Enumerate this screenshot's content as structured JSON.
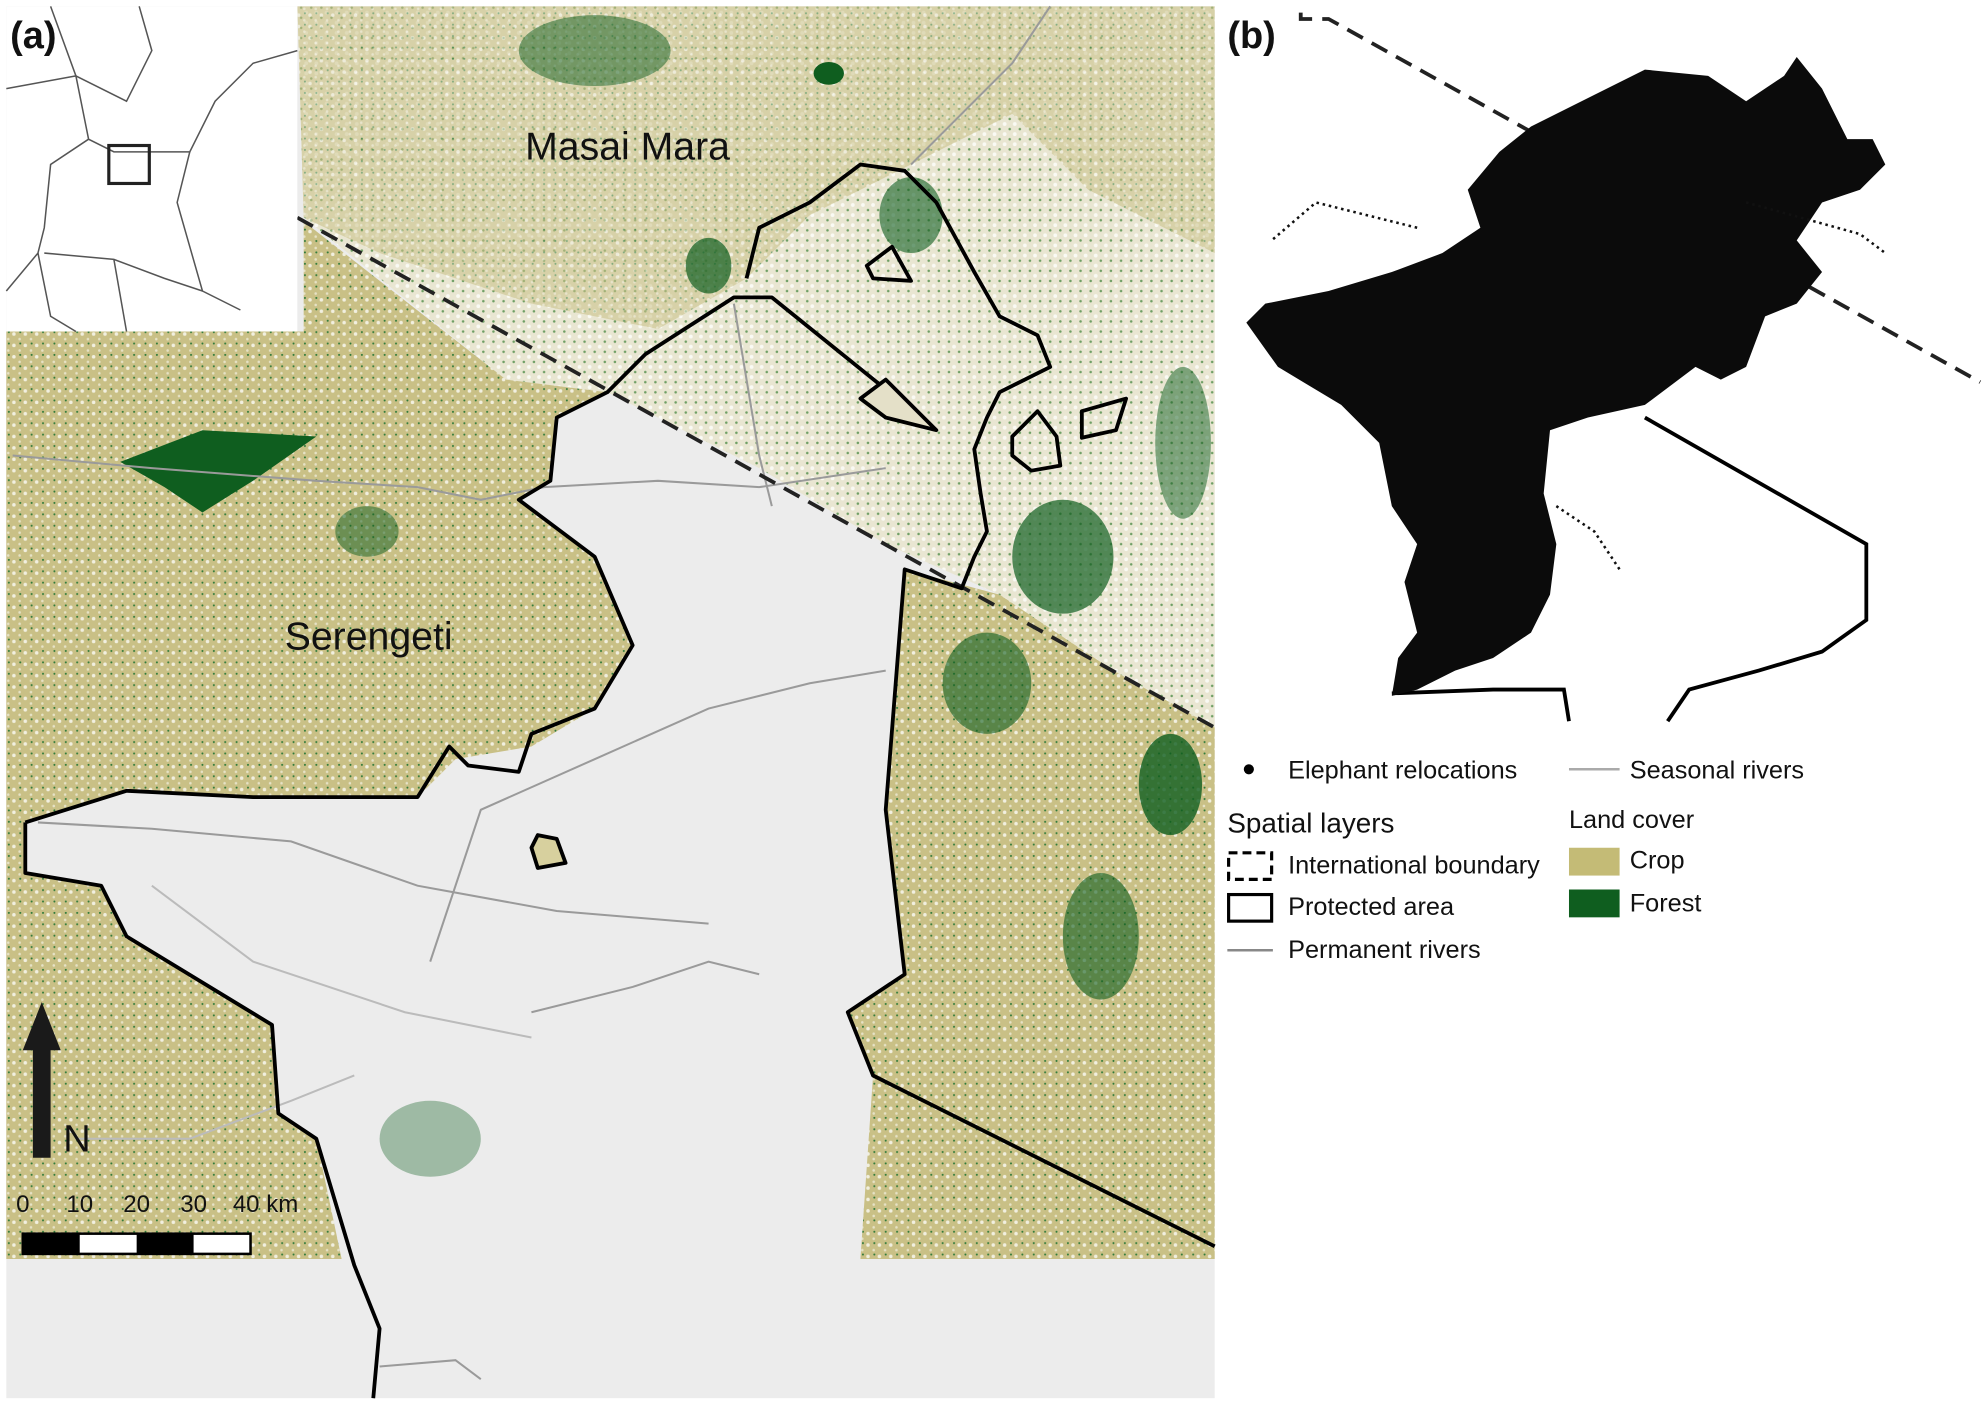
{
  "panels": [
    {
      "label": "(a)",
      "places": [
        "Masai Mara",
        "Serengeti"
      ],
      "north": "N",
      "scale_bar": [
        "0",
        "10",
        "20",
        "30",
        "40 km"
      ]
    },
    {
      "label": "(b)"
    }
  ],
  "legend": {
    "elephant_relocations": "Elephant relocations",
    "seasonal_rivers": "Seasonal rivers",
    "spatial_layers": {
      "title": "Spatial layers",
      "items": [
        "International boundary",
        "Protected area",
        "Permanent rivers"
      ]
    },
    "land_cover": {
      "title": "Land cover",
      "items": [
        "Crop",
        "Forest"
      ]
    }
  }
}
